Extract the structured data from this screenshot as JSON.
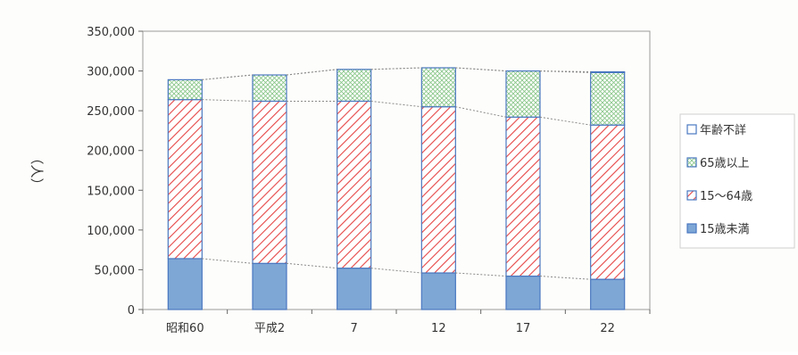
{
  "chart_data": {
    "type": "bar",
    "stacked": true,
    "title": "",
    "xlabel": "",
    "ylabel": "（人）",
    "ylim": [
      0,
      350000
    ],
    "yticks": [
      0,
      50000,
      100000,
      150000,
      200000,
      250000,
      300000,
      350000
    ],
    "ytick_labels": [
      "0",
      "50,000",
      "100,000",
      "150,000",
      "200,000",
      "250,000",
      "300,000",
      "350,000"
    ],
    "categories": [
      "昭和60",
      "平成2",
      "7",
      "12",
      "17",
      "22"
    ],
    "grid": false,
    "legend_position": "right",
    "series_lines": "dashed lines connect the top of each segment between bars",
    "series": [
      {
        "name": "15歳未満",
        "pattern": "solid",
        "color": "#7ea7d6",
        "values": [
          64000,
          58000,
          52000,
          46000,
          42000,
          38000
        ]
      },
      {
        "name": "15～64歳",
        "pattern": "diagonal-hatch",
        "color": "#e64646",
        "values": [
          200000,
          204000,
          210000,
          209000,
          200000,
          194000
        ]
      },
      {
        "name": "65歳以上",
        "pattern": "dot-grid",
        "color": "#8fc88f",
        "values": [
          25000,
          33000,
          40000,
          49000,
          58000,
          66000
        ]
      },
      {
        "name": "年齢不詳",
        "pattern": "empty",
        "color": "#4a78c0",
        "values": [
          0,
          0,
          0,
          0,
          0,
          1000
        ]
      }
    ]
  }
}
